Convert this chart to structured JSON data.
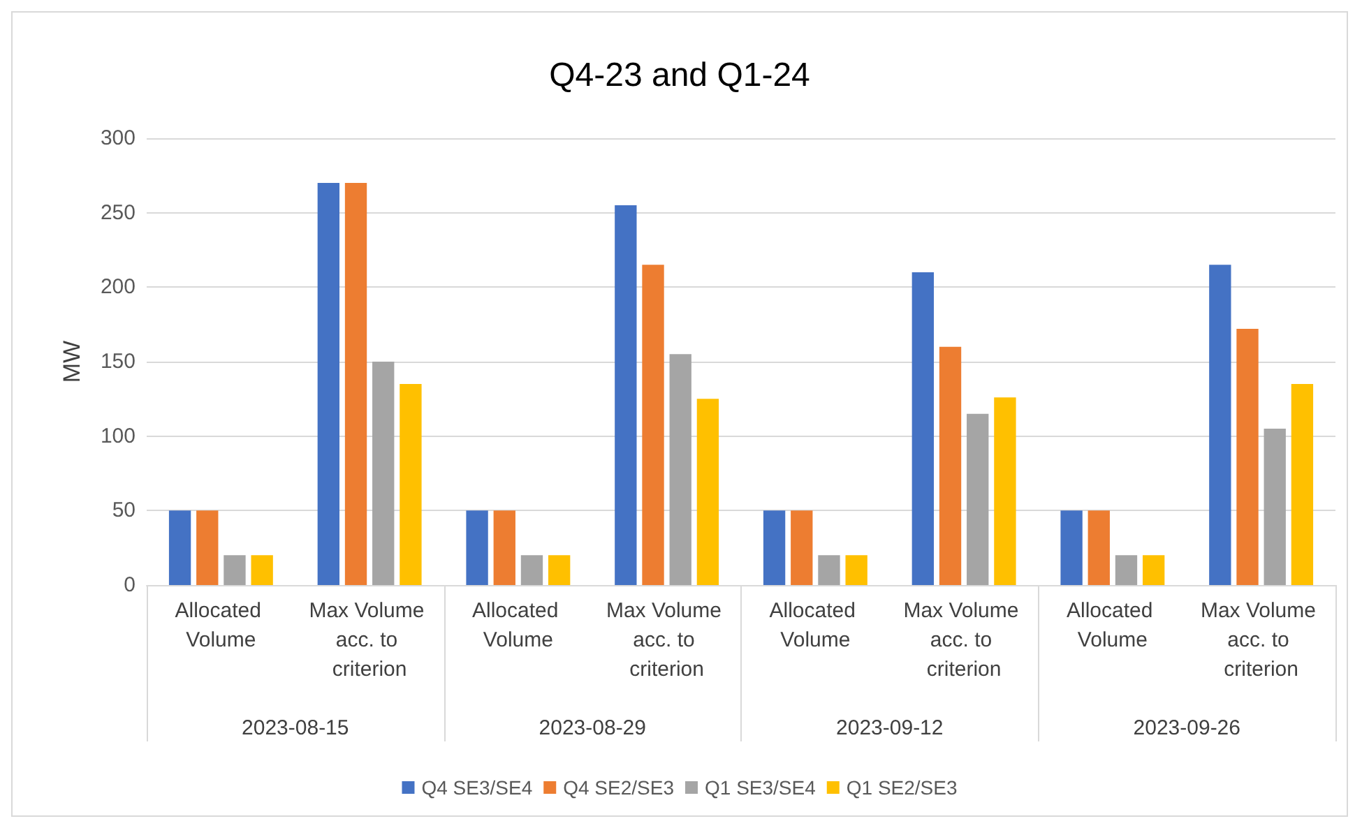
{
  "chart_data": {
    "type": "bar",
    "title": "Q4-23 and Q1-24",
    "ylabel": "MW",
    "categories": [
      "Allocated Volume",
      "Max Volume acc. to criterion",
      "Allocated Volume",
      "Max Volume acc. to criterion",
      "Allocated Volume",
      "Max Volume acc. to criterion",
      "Allocated Volume",
      "Max Volume acc. to criterion"
    ],
    "annotations": [
      "2023-08-15",
      "2023-08-29",
      "2023-09-12",
      "2023-09-26"
    ],
    "series": [
      {
        "name": "Q4 SE3/SE4",
        "color": "#4472c4",
        "values": [
          50,
          270,
          50,
          255,
          50,
          210,
          50,
          215
        ]
      },
      {
        "name": "Q4 SE2/SE3",
        "color": "#ed7d31",
        "values": [
          50,
          270,
          50,
          215,
          50,
          160,
          50,
          172
        ]
      },
      {
        "name": "Q1 SE3/SE4",
        "color": "#a5a5a5",
        "values": [
          20,
          150,
          20,
          155,
          20,
          115,
          20,
          105
        ]
      },
      {
        "name": "Q1 SE2/SE3",
        "color": "#ffc000",
        "values": [
          20,
          135,
          20,
          125,
          20,
          126,
          20,
          135
        ]
      }
    ],
    "ylim": [
      0,
      300
    ],
    "yticks": [
      0,
      50,
      100,
      150,
      200,
      250,
      300
    ],
    "grid": "y",
    "legend": "bottom"
  }
}
